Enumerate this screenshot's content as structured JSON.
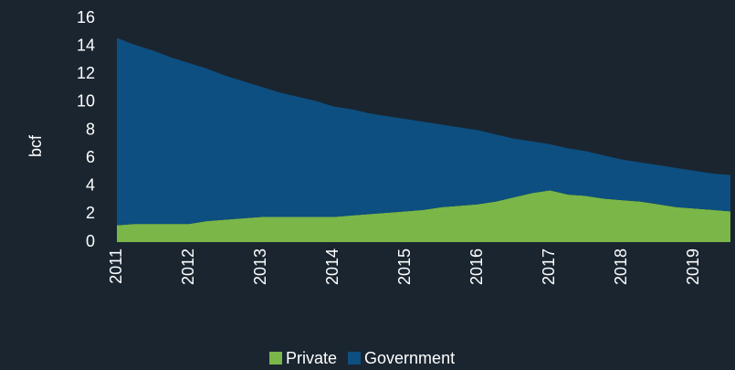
{
  "chart_data": {
    "type": "stacked-area",
    "y_label": "bcf",
    "categories": [
      "2011",
      null,
      null,
      null,
      "2012",
      null,
      null,
      null,
      "2013",
      null,
      null,
      null,
      "2014",
      null,
      null,
      null,
      "2015",
      null,
      null,
      null,
      "2016",
      null,
      null,
      null,
      "2017",
      null,
      null,
      null,
      "2018",
      null,
      null,
      null,
      "2019",
      null,
      null
    ],
    "series": [
      {
        "name": "Private",
        "color": "#7ab648",
        "values": [
          1.2,
          1.3,
          1.3,
          1.3,
          1.3,
          1.5,
          1.6,
          1.7,
          1.8,
          1.8,
          1.8,
          1.8,
          1.8,
          1.9,
          2.0,
          2.1,
          2.2,
          2.3,
          2.5,
          2.6,
          2.7,
          2.9,
          3.2,
          3.5,
          3.7,
          3.4,
          3.3,
          3.1,
          3.0,
          2.9,
          2.7,
          2.5,
          2.4,
          2.3,
          2.2
        ]
      },
      {
        "name": "Government",
        "color": "#0d4f80",
        "values": [
          13.4,
          12.8,
          12.4,
          11.9,
          11.5,
          10.9,
          10.3,
          9.8,
          9.3,
          8.9,
          8.6,
          8.3,
          7.9,
          7.6,
          7.2,
          6.9,
          6.6,
          6.3,
          5.9,
          5.6,
          5.3,
          4.8,
          4.2,
          3.7,
          3.3,
          3.3,
          3.2,
          3.1,
          2.9,
          2.8,
          2.8,
          2.8,
          2.7,
          2.6,
          2.6
        ]
      }
    ],
    "ylim": [
      0,
      16
    ],
    "yticks": [
      0,
      2,
      4,
      6,
      8,
      10,
      12,
      14,
      16
    ],
    "legend": "bottom"
  }
}
